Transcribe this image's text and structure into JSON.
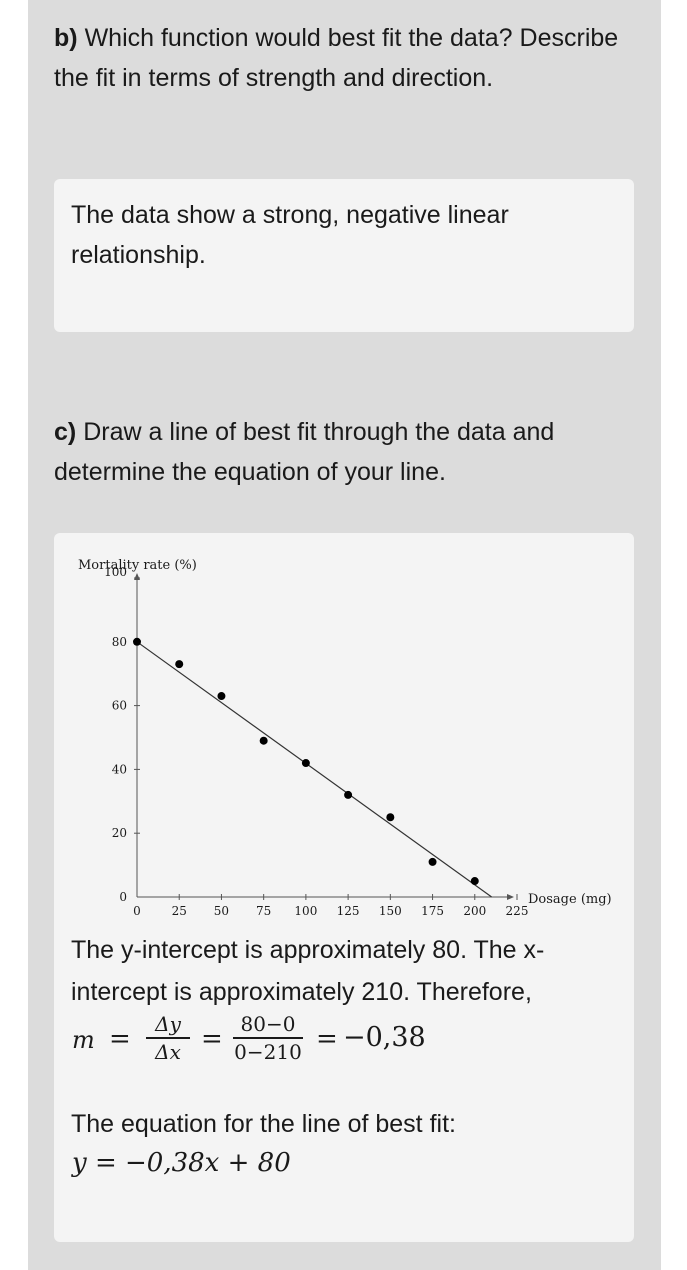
{
  "part_b": {
    "label": "b)",
    "question": "Which function would best fit the data? Describe the fit in terms of strength and direction.",
    "answer": "The data show a strong, negative linear relationship."
  },
  "part_c": {
    "label": "c)",
    "question": "Draw a line of best fit through the data and determine the equation of your line."
  },
  "chart_data": {
    "type": "scatter",
    "ylabel": "Mortality rate (%)",
    "xlabel": "Dosage (mg)",
    "x_ticks": [
      "0",
      "25",
      "50",
      "75",
      "100",
      "125",
      "150",
      "175",
      "200",
      "225"
    ],
    "y_ticks": [
      "0",
      "20",
      "40",
      "60",
      "80",
      "100"
    ],
    "xlim": [
      0,
      225
    ],
    "ylim": [
      0,
      100
    ],
    "grid": false,
    "points": [
      {
        "x": 0,
        "y": 80
      },
      {
        "x": 25,
        "y": 73
      },
      {
        "x": 50,
        "y": 63
      },
      {
        "x": 75,
        "y": 49
      },
      {
        "x": 100,
        "y": 42
      },
      {
        "x": 125,
        "y": 32
      },
      {
        "x": 150,
        "y": 25
      },
      {
        "x": 175,
        "y": 11
      },
      {
        "x": 200,
        "y": 5
      }
    ],
    "best_fit_line": {
      "x": [
        0,
        210
      ],
      "y": [
        80,
        0
      ]
    },
    "colors": {
      "points": "#000000",
      "line": "#333333"
    }
  },
  "solution": {
    "intercept_text": "The y-intercept is approximately 80. The x-intercept is approximately 210. Therefore,",
    "m": "m",
    "eq1": "=",
    "dy": "Δy",
    "dx": "Δx",
    "eq2": "=",
    "num": "80−0",
    "den": "0−210",
    "eq3": "=",
    "result": "−0,38",
    "equation_label": "The equation for the line of best fit:",
    "equation": "y = −0,38x + 80"
  }
}
